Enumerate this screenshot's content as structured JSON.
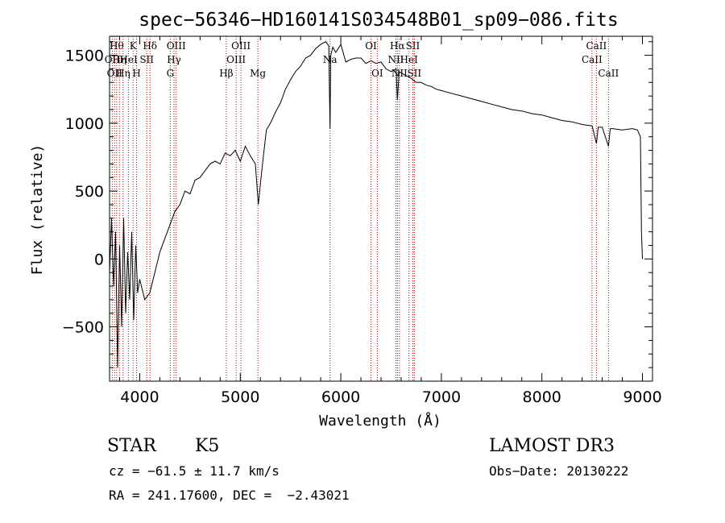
{
  "chart_data": {
    "type": "line",
    "title": "spec−56346−HD160141S034548B01_sp09−086.fits",
    "xlabel": "Wavelength (Å)",
    "ylabel": "Flux (relative)",
    "xlim": [
      3700,
      9100
    ],
    "ylim": [
      -900,
      1640
    ],
    "xticks": [
      4000,
      5000,
      6000,
      7000,
      8000,
      9000
    ],
    "xtick_labels": [
      "4000",
      "5000",
      "6000",
      "7000",
      "8000",
      "9000"
    ],
    "yticks": [
      -500,
      0,
      500,
      1000,
      1500
    ],
    "ytick_labels": [
      "−500",
      "0",
      "500",
      "1000",
      "1500"
    ],
    "grid": false,
    "series": [
      {
        "name": "spectrum",
        "x": [
          3700,
          3720,
          3740,
          3760,
          3780,
          3800,
          3820,
          3840,
          3860,
          3880,
          3900,
          3920,
          3940,
          3960,
          3980,
          4000,
          4050,
          4100,
          4150,
          4200,
          4250,
          4300,
          4350,
          4400,
          4450,
          4500,
          4550,
          4600,
          4650,
          4700,
          4750,
          4800,
          4850,
          4900,
          4950,
          5000,
          5050,
          5100,
          5150,
          5180,
          5200,
          5230,
          5260,
          5300,
          5350,
          5400,
          5450,
          5500,
          5550,
          5600,
          5650,
          5700,
          5750,
          5800,
          5850,
          5880,
          5893,
          5900,
          5920,
          5950,
          6000,
          6050,
          6100,
          6150,
          6200,
          6250,
          6300,
          6350,
          6400,
          6450,
          6500,
          6550,
          6563,
          6580,
          6600,
          6650,
          6700,
          6750,
          6800,
          6850,
          6900,
          6950,
          7000,
          7100,
          7200,
          7300,
          7400,
          7500,
          7600,
          7700,
          7800,
          7900,
          8000,
          8100,
          8200,
          8300,
          8400,
          8500,
          8542,
          8560,
          8600,
          8662,
          8680,
          8700,
          8800,
          8900,
          8950,
          8980,
          8990,
          9000
        ],
        "values": [
          -100,
          300,
          -200,
          200,
          -800,
          100,
          -500,
          300,
          -400,
          50,
          -300,
          200,
          -450,
          100,
          -250,
          -150,
          -300,
          -250,
          -100,
          50,
          150,
          250,
          350,
          400,
          500,
          480,
          580,
          600,
          650,
          700,
          720,
          700,
          780,
          760,
          800,
          720,
          830,
          760,
          700,
          400,
          550,
          760,
          950,
          1000,
          1080,
          1150,
          1250,
          1320,
          1380,
          1420,
          1480,
          1500,
          1550,
          1580,
          1600,
          1570,
          960,
          1500,
          1560,
          1520,
          1580,
          1450,
          1470,
          1480,
          1480,
          1440,
          1460,
          1440,
          1450,
          1400,
          1380,
          1400,
          1170,
          1380,
          1370,
          1350,
          1330,
          1300,
          1300,
          1280,
          1270,
          1250,
          1240,
          1220,
          1200,
          1180,
          1160,
          1140,
          1120,
          1100,
          1090,
          1070,
          1060,
          1040,
          1020,
          1010,
          990,
          980,
          850,
          970,
          970,
          830,
          960,
          960,
          950,
          960,
          950,
          900,
          200,
          0
        ]
      }
    ],
    "line_markers": [
      {
        "x": 3727,
        "row": 1,
        "label": "OII"
      },
      {
        "x": 3750,
        "row": 2,
        "label": "OII"
      },
      {
        "x": 3771,
        "row": 0,
        "label": "Hθ"
      },
      {
        "x": 3798,
        "row": 1,
        "label": "Hη"
      },
      {
        "x": 3835,
        "row": 2,
        "label": "Hη"
      },
      {
        "x": 3889,
        "row": 1,
        "label": "HeI"
      },
      {
        "x": 3934,
        "row": 0,
        "label": "K"
      },
      {
        "x": 3969,
        "row": 2,
        "label": "H"
      },
      {
        "x": 4070,
        "row": 1,
        "label": "SII"
      },
      {
        "x": 4102,
        "row": 0,
        "label": "Hδ"
      },
      {
        "x": 4304,
        "row": 2,
        "label": "G"
      },
      {
        "x": 4341,
        "row": 1,
        "label": "Hγ"
      },
      {
        "x": 4363,
        "row": 0,
        "label": "OIII"
      },
      {
        "x": 4861,
        "row": 2,
        "label": "Hβ"
      },
      {
        "x": 4959,
        "row": 1,
        "label": "OIII"
      },
      {
        "x": 5007,
        "row": 0,
        "label": "OIII"
      },
      {
        "x": 5175,
        "row": 2,
        "label": "Mg"
      },
      {
        "x": 5893,
        "row": 1,
        "label": "Na"
      },
      {
        "x": 6300,
        "row": 0,
        "label": "OI"
      },
      {
        "x": 6363,
        "row": 2,
        "label": "OI"
      },
      {
        "x": 6548,
        "row": 1,
        "label": "NII"
      },
      {
        "x": 6563,
        "row": 0,
        "label": "Hα"
      },
      {
        "x": 6583,
        "row": 2,
        "label": "NII"
      },
      {
        "x": 6678,
        "row": 1,
        "label": "HeI"
      },
      {
        "x": 6716,
        "row": 0,
        "label": "SII"
      },
      {
        "x": 6731,
        "row": 2,
        "label": "SII"
      },
      {
        "x": 8498,
        "row": 1,
        "label": "CaII"
      },
      {
        "x": 8542,
        "row": 0,
        "label": "CaII"
      },
      {
        "x": 8662,
        "row": 2,
        "label": "CaII"
      }
    ]
  },
  "info": {
    "object_class": "STAR",
    "subclass": "K5",
    "survey": "LAMOST DR3",
    "cz": "cz = −61.5 ± 11.7 km/s",
    "obs_date": "Obs−Date: 20130222",
    "coords": "RA = 241.17600, DEC =  −2.43021"
  }
}
